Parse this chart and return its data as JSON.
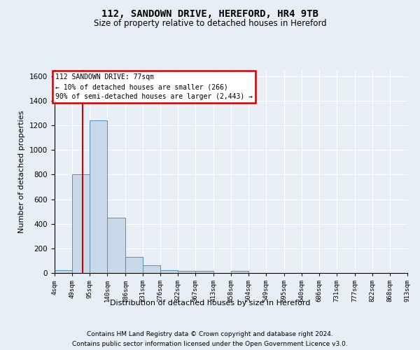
{
  "title1": "112, SANDOWN DRIVE, HEREFORD, HR4 9TB",
  "title2": "Size of property relative to detached houses in Hereford",
  "xlabel": "Distribution of detached houses by size in Hereford",
  "ylabel": "Number of detached properties",
  "footnote1": "Contains HM Land Registry data © Crown copyright and database right 2024.",
  "footnote2": "Contains public sector information licensed under the Open Government Licence v3.0.",
  "bin_labels": [
    "4sqm",
    "49sqm",
    "95sqm",
    "140sqm",
    "186sqm",
    "231sqm",
    "276sqm",
    "322sqm",
    "367sqm",
    "413sqm",
    "458sqm",
    "504sqm",
    "549sqm",
    "595sqm",
    "640sqm",
    "686sqm",
    "731sqm",
    "777sqm",
    "822sqm",
    "868sqm",
    "913sqm"
  ],
  "bar_values": [
    25,
    800,
    1240,
    450,
    130,
    65,
    25,
    15,
    15,
    0,
    15,
    0,
    0,
    0,
    0,
    0,
    0,
    0,
    0,
    0
  ],
  "bar_color": "#c8d8e8",
  "bar_edge_color": "#5b8db8",
  "red_line_x": 77,
  "ylim": [
    0,
    1650
  ],
  "annotation_text": "112 SANDOWN DRIVE: 77sqm\n← 10% of detached houses are smaller (266)\n90% of semi-detached houses are larger (2,443) →",
  "annotation_box_color": "#ffffff",
  "annotation_box_edge_color": "#cc0000",
  "background_color": "#e8eef5",
  "grid_color": "#ffffff"
}
